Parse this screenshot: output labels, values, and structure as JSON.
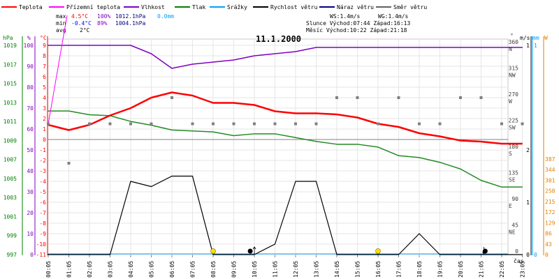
{
  "chart_data": {
    "type": "line",
    "title": "11.1.2000",
    "legend": [
      {
        "name": "Teplota",
        "color": "#ff0000"
      },
      {
        "name": "Přízemní teplota",
        "color": "#ff00ff"
      },
      {
        "name": "Vlhkost",
        "color": "#8000c0"
      },
      {
        "name": "Tlak",
        "color": "#008000"
      },
      {
        "name": "Srážky",
        "color": "#00a0ff"
      },
      {
        "name": "Rychlost větru",
        "color": "#000000"
      },
      {
        "name": "Náraz větru",
        "color": "#000080"
      },
      {
        "name": "Směr větru",
        "color": "#606060"
      }
    ],
    "stats": {
      "max_label": "max",
      "min_label": "min",
      "avg_label": "avg",
      "max_temp": "4.5°C",
      "max_hum": "100%",
      "max_press": "1012.1hPa",
      "max_rain": "0.0mm",
      "min_temp": "-0.4°C",
      "min_hum": "89%",
      "min_press": "1004.1hPa",
      "avg_temp": "2°C",
      "ws": "WS:1.4m/s",
      "wg": "WG:1.4m/s",
      "sun": "Slunce Východ:07:44  Západ:16:13",
      "moon": "Měsíc  Východ:10:22  Západ:21:18"
    },
    "x_ticks": [
      "00:05",
      "01:05",
      "02:05",
      "03:05",
      "04:05",
      "05:05",
      "06:05",
      "07:05",
      "08:05",
      "09:05",
      "10:05",
      "11:05",
      "12:05",
      "13:05",
      "14:05",
      "15:05",
      "16:05",
      "17:05",
      "18:05",
      "19:05",
      "20:05",
      "21:05",
      "22:05",
      "23:05"
    ],
    "x_label": "čas",
    "axes": {
      "hpa_title": "hPa",
      "hpa_ticks": [
        "1019",
        "1017",
        "1015",
        "1013",
        "1011",
        "1009",
        "1007",
        "1005",
        "1003",
        "1001",
        "999",
        "997"
      ],
      "hum_title": "%",
      "hum_ticks": [
        "100",
        "90",
        "80",
        "70",
        "60",
        "50",
        "40",
        "30",
        "20",
        "10",
        "0"
      ],
      "temp_title": "°C",
      "temp_ticks": [
        "9",
        "8",
        "7",
        "6",
        "5",
        "4",
        "3",
        "2",
        "1",
        "0",
        "-1",
        "-2",
        "-3",
        "-4",
        "-5",
        "-6",
        "-7",
        "-8",
        "-9",
        "-10",
        "-11"
      ],
      "dir_title": "°",
      "dir_ticks": [
        {
          "deg": "360",
          "dir": "N"
        },
        {
          "deg": "315",
          "dir": "NW"
        },
        {
          "deg": "270",
          "dir": "W"
        },
        {
          "deg": "225",
          "dir": "SW"
        },
        {
          "deg": "180",
          "dir": "S"
        },
        {
          "deg": "135",
          "dir": "SE"
        },
        {
          "deg": "90",
          "dir": "E"
        },
        {
          "deg": "45",
          "dir": "NE"
        },
        {
          "deg": "0",
          "dir": ""
        }
      ],
      "ms_title": "m/s",
      "ms_ticks": [
        "1",
        "2",
        "1",
        "0"
      ],
      "mm_title": "mm",
      "mm_ticks": [
        "1",
        "0"
      ],
      "orange_title": "W",
      "orange_ticks": [
        "387",
        "344",
        "301",
        "258",
        "215",
        "172",
        "129",
        "86",
        "43",
        "0"
      ]
    },
    "series": [
      {
        "name": "Teplota",
        "unit": "°C",
        "x": [
          0,
          1,
          2,
          3,
          4,
          5,
          6,
          7,
          8,
          9,
          10,
          11,
          12,
          13,
          14,
          15,
          16,
          17,
          18,
          19,
          20,
          21,
          22,
          23
        ],
        "values": [
          1.4,
          0.9,
          1.4,
          2.3,
          3.0,
          4.0,
          4.5,
          4.2,
          3.5,
          3.5,
          3.3,
          2.7,
          2.5,
          2.5,
          2.4,
          2.1,
          1.5,
          1.2,
          0.6,
          0.3,
          -0.1,
          -0.2,
          -0.4,
          -0.4
        ]
      },
      {
        "name": "Vlhkost",
        "unit": "%",
        "x": [
          0,
          1,
          2,
          3,
          4,
          5,
          6,
          7,
          8,
          9,
          10,
          11,
          12,
          13,
          14,
          15,
          16,
          17,
          18,
          19,
          20,
          21,
          22,
          23
        ],
        "values": [
          100,
          100,
          100,
          100,
          100,
          96,
          89,
          91,
          92,
          93,
          95,
          96,
          97,
          99,
          99,
          99,
          99,
          99,
          99,
          99,
          99,
          99,
          99,
          99
        ]
      },
      {
        "name": "Tlak",
        "unit": "hPa",
        "x": [
          0,
          1,
          2,
          3,
          4,
          5,
          6,
          7,
          8,
          9,
          10,
          11,
          12,
          13,
          14,
          15,
          16,
          17,
          18,
          19,
          20,
          21,
          22,
          23
        ],
        "values": [
          1012.1,
          1012.1,
          1011.7,
          1011.6,
          1011.0,
          1010.6,
          1010.1,
          1010.0,
          1009.9,
          1009.5,
          1009.7,
          1009.7,
          1009.3,
          1008.9,
          1008.6,
          1008.6,
          1008.3,
          1007.4,
          1007.2,
          1006.7,
          1006.0,
          1004.8,
          1004.1,
          1004.1
        ]
      },
      {
        "name": "Rychlost větru",
        "unit": "m/s",
        "x": [
          0,
          1,
          2,
          3,
          4,
          5,
          6,
          7,
          8,
          9,
          10,
          11,
          12,
          13,
          14,
          15,
          16,
          17,
          18,
          19,
          20,
          21,
          22,
          23
        ],
        "values": [
          0,
          0,
          0,
          0,
          1.4,
          1.3,
          1.5,
          1.5,
          0,
          0,
          0,
          0.2,
          1.4,
          1.4,
          0,
          0,
          0,
          0,
          0.4,
          0,
          0,
          0,
          0,
          0
        ]
      },
      {
        "name": "Směr větru",
        "unit": "°",
        "x": [
          0,
          2,
          3,
          4,
          5,
          6,
          7,
          8,
          9,
          10,
          11,
          12,
          13,
          14,
          15,
          16,
          17,
          18,
          19,
          20,
          21,
          22,
          23
        ],
        "values": [
          225,
          225,
          225,
          225,
          225,
          270,
          225,
          225,
          225,
          225,
          225,
          225,
          225,
          270,
          270,
          225,
          270,
          225,
          225,
          270,
          270,
          225,
          225
        ]
      }
    ]
  }
}
